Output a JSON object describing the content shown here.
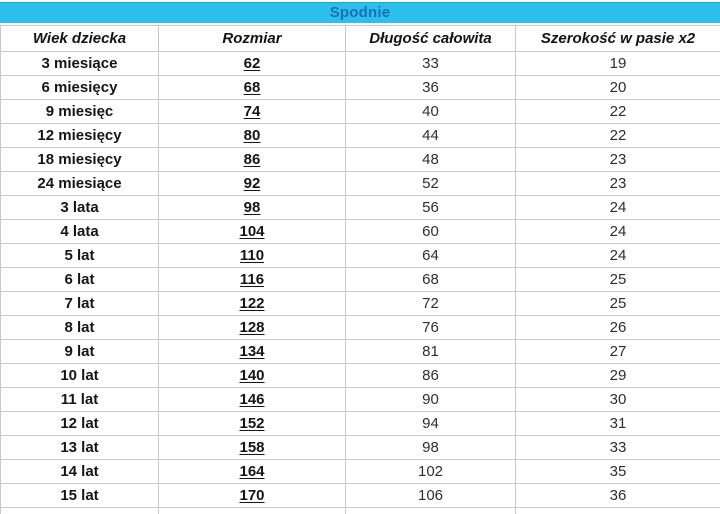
{
  "title": "Spodnie",
  "columns": [
    "Wiek dziecka",
    "Rozmiar",
    "Długość całowita",
    "Szerokość w pasie x2"
  ],
  "rows": [
    [
      "3 miesiące",
      "62",
      "33",
      "19"
    ],
    [
      "6 miesięcy",
      "68",
      "36",
      "20"
    ],
    [
      "9 miesięc",
      "74",
      "40",
      "22"
    ],
    [
      "12 miesięcy",
      "80",
      "44",
      "22"
    ],
    [
      "18 miesięcy",
      "86",
      "48",
      "23"
    ],
    [
      "24 miesiące",
      "92",
      "52",
      "23"
    ],
    [
      "3 lata",
      "98",
      "56",
      "24"
    ],
    [
      "4 lata",
      "104",
      "60",
      "24"
    ],
    [
      "5 lat",
      "110",
      "64",
      "24"
    ],
    [
      "6 lat",
      "116",
      "68",
      "25"
    ],
    [
      "7 lat",
      "122",
      "72",
      "25"
    ],
    [
      "8 lat",
      "128",
      "76",
      "26"
    ],
    [
      "9 lat",
      "134",
      "81",
      "27"
    ],
    [
      "10 lat",
      "140",
      "86",
      "29"
    ],
    [
      "11 lat",
      "146",
      "90",
      "30"
    ],
    [
      "12 lat",
      "152",
      "94",
      "31"
    ],
    [
      "13 lat",
      "158",
      "98",
      "33"
    ],
    [
      "14 lat",
      "164",
      "102",
      "35"
    ],
    [
      "15 lat",
      "170",
      "106",
      "36"
    ]
  ],
  "colors": {
    "title_bg": "#2cbfec",
    "title_text": "#1a70b8",
    "grid": "#c8c8c8",
    "text": "#1f1f1f"
  }
}
